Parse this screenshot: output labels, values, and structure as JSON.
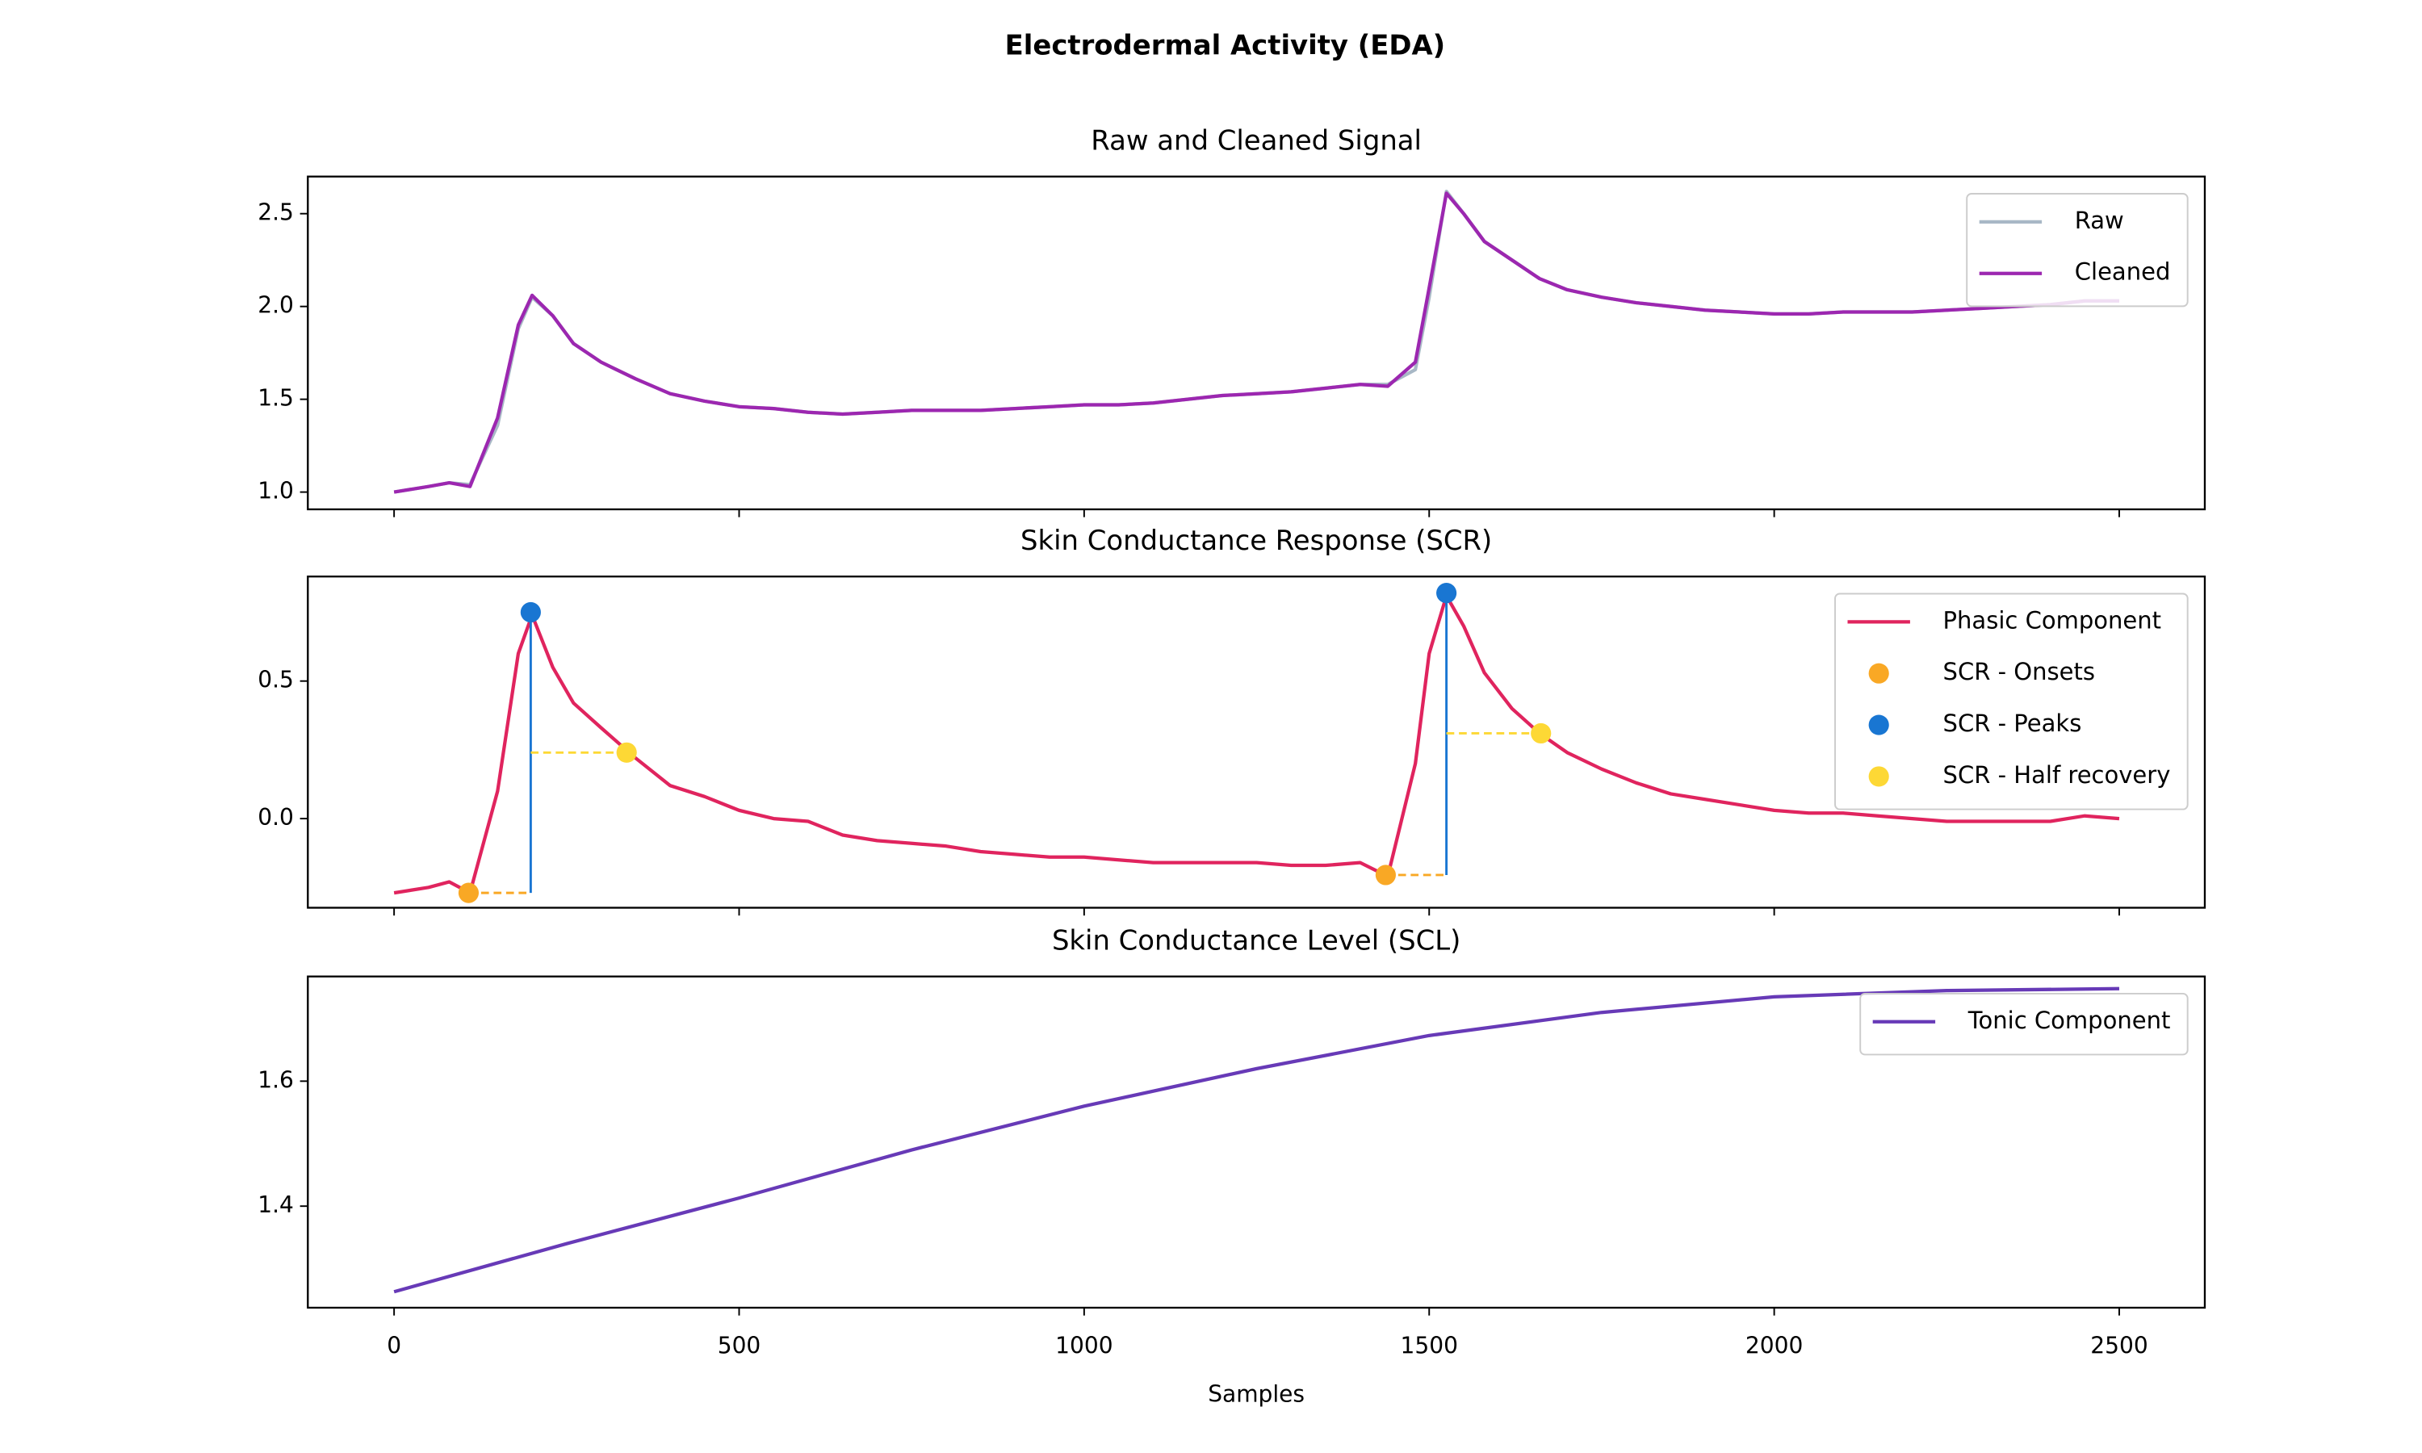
{
  "title": "Electrodermal Activity (EDA)",
  "chart_data": [
    {
      "type": "line",
      "title": "Raw and Cleaned Signal",
      "x": [
        0,
        50,
        80,
        110,
        150,
        180,
        200,
        230,
        260,
        300,
        350,
        400,
        450,
        500,
        550,
        600,
        650,
        700,
        750,
        800,
        850,
        900,
        950,
        1000,
        1050,
        1100,
        1150,
        1200,
        1250,
        1300,
        1350,
        1400,
        1440,
        1480,
        1500,
        1525,
        1550,
        1580,
        1620,
        1660,
        1700,
        1750,
        1800,
        1850,
        1900,
        1950,
        2000,
        2050,
        2100,
        2150,
        2200,
        2250,
        2300,
        2350,
        2400,
        2450,
        2500
      ],
      "series": [
        {
          "name": "Raw",
          "color": "#a8b8c6",
          "values": [
            1.0,
            1.03,
            1.05,
            1.04,
            1.36,
            1.88,
            2.05,
            1.95,
            1.8,
            1.7,
            1.61,
            1.53,
            1.49,
            1.46,
            1.45,
            1.43,
            1.42,
            1.43,
            1.44,
            1.44,
            1.44,
            1.45,
            1.46,
            1.47,
            1.47,
            1.48,
            1.5,
            1.52,
            1.53,
            1.54,
            1.56,
            1.58,
            1.58,
            1.66,
            2.05,
            2.62,
            2.5,
            2.35,
            2.25,
            2.15,
            2.09,
            2.05,
            2.02,
            2.0,
            1.98,
            1.97,
            1.96,
            1.96,
            1.97,
            1.97,
            1.97,
            1.98,
            1.99,
            2.0,
            2.01,
            2.03,
            2.03
          ]
        },
        {
          "name": "Cleaned",
          "color": "#9c27b0",
          "values": [
            1.0,
            1.03,
            1.05,
            1.03,
            1.4,
            1.9,
            2.06,
            1.95,
            1.8,
            1.7,
            1.61,
            1.53,
            1.49,
            1.46,
            1.45,
            1.43,
            1.42,
            1.43,
            1.44,
            1.44,
            1.44,
            1.45,
            1.46,
            1.47,
            1.47,
            1.48,
            1.5,
            1.52,
            1.53,
            1.54,
            1.56,
            1.58,
            1.57,
            1.7,
            2.1,
            2.61,
            2.5,
            2.35,
            2.25,
            2.15,
            2.09,
            2.05,
            2.02,
            2.0,
            1.98,
            1.97,
            1.96,
            1.96,
            1.97,
            1.97,
            1.97,
            1.98,
            1.99,
            2.0,
            2.01,
            2.03,
            2.03
          ]
        }
      ],
      "xlim": [
        -125,
        2624
      ],
      "ylim": [
        0.907,
        2.7
      ],
      "xticks": [
        0,
        500,
        1000,
        1500,
        2000,
        2500
      ],
      "xticklabels": false,
      "yticks": [
        {
          "value": 1,
          "label": "1.0"
        },
        1.5,
        {
          "value": 2,
          "label": "2.0"
        },
        2.5
      ],
      "legend": "upper right"
    },
    {
      "type": "line",
      "title": "Skin Conductance Response (SCR)",
      "x": [
        0,
        50,
        80,
        110,
        150,
        180,
        200,
        230,
        260,
        300,
        350,
        400,
        450,
        500,
        550,
        600,
        650,
        700,
        750,
        800,
        850,
        900,
        950,
        1000,
        1050,
        1100,
        1150,
        1200,
        1250,
        1300,
        1350,
        1400,
        1440,
        1480,
        1500,
        1525,
        1550,
        1580,
        1620,
        1660,
        1700,
        1750,
        1800,
        1850,
        1900,
        1950,
        2000,
        2050,
        2100,
        2150,
        2200,
        2250,
        2300,
        2350,
        2400,
        2450,
        2500
      ],
      "series": [
        {
          "name": "Phasic Component",
          "color": "#e0245e",
          "type": "line",
          "values": [
            -0.27,
            -0.25,
            -0.23,
            -0.27,
            0.1,
            0.6,
            0.74,
            0.55,
            0.42,
            0.33,
            0.22,
            0.12,
            0.08,
            0.03,
            0.0,
            -0.01,
            -0.06,
            -0.08,
            -0.09,
            -0.1,
            -0.12,
            -0.13,
            -0.14,
            -0.14,
            -0.15,
            -0.16,
            -0.16,
            -0.16,
            -0.16,
            -0.17,
            -0.17,
            -0.16,
            -0.21,
            0.2,
            0.6,
            0.81,
            0.7,
            0.53,
            0.4,
            0.31,
            0.24,
            0.18,
            0.13,
            0.09,
            0.07,
            0.05,
            0.03,
            0.02,
            0.02,
            0.01,
            0.0,
            -0.01,
            -0.01,
            -0.01,
            -0.01,
            0.01,
            0.0
          ]
        },
        {
          "name": "SCR - Onsets",
          "color": "#f9a825",
          "type": "scatter",
          "x": [
            108,
            1437
          ],
          "values": [
            -0.27,
            -0.205
          ]
        },
        {
          "name": "SCR - Peaks",
          "color": "#1976d2",
          "type": "scatter",
          "x": [
            198,
            1525
          ],
          "values": [
            0.75,
            0.82
          ]
        },
        {
          "name": "SCR - Half recovery",
          "color": "#fdd835",
          "type": "scatter",
          "x": [
            337,
            1662
          ],
          "values": [
            0.24,
            0.31
          ]
        }
      ],
      "xlim": [
        -125,
        2624
      ],
      "ylim": [
        -0.324,
        0.88
      ],
      "xticks": [
        0,
        500,
        1000,
        1500,
        2000,
        2500
      ],
      "xticklabels": false,
      "yticks": [
        {
          "value": 0,
          "label": "0.0"
        },
        0.5
      ],
      "legend": "upper right"
    },
    {
      "type": "line",
      "title": "Skin Conductance Level (SCL)",
      "xlabel": "Samples",
      "x": [
        0,
        250,
        500,
        750,
        1000,
        1250,
        1500,
        1750,
        2000,
        2250,
        2500
      ],
      "series": [
        {
          "name": "Tonic Component",
          "color": "#673ab7",
          "values": [
            1.263,
            1.34,
            1.413,
            1.49,
            1.56,
            1.62,
            1.673,
            1.71,
            1.735,
            1.745,
            1.748
          ]
        }
      ],
      "xlim": [
        -125,
        2624
      ],
      "ylim": [
        1.2375,
        1.7675
      ],
      "xticks": [
        0,
        500,
        1000,
        1500,
        2000,
        2500
      ],
      "xticklabels": true,
      "yticks": [
        1.4,
        1.6
      ],
      "legend": "upper right"
    }
  ]
}
